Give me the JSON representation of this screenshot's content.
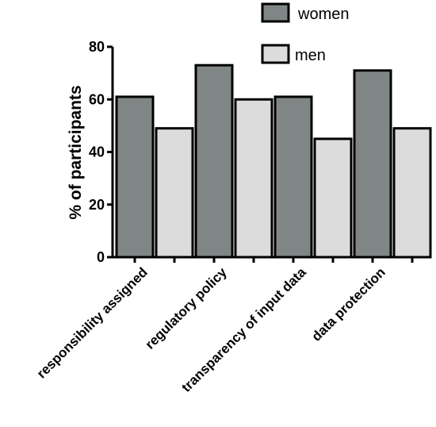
{
  "colors": {
    "women": "#7f8685",
    "men": "#dcdcdc",
    "outline": "#000000"
  },
  "chart_data": {
    "type": "bar",
    "categories": [
      "responsibility assigned",
      "regulatory policy",
      "transparency of input data",
      "data protection"
    ],
    "series": [
      {
        "name": "women",
        "values": [
          61,
          73,
          61,
          71
        ]
      },
      {
        "name": "men",
        "values": [
          49,
          60,
          45,
          49
        ]
      }
    ],
    "title": "",
    "xlabel": "",
    "ylabel": "% of participants",
    "ylim": [
      0,
      80
    ],
    "yticks": [
      "0",
      "20",
      "40",
      "60",
      "80"
    ],
    "grid": false,
    "legend": "top-right"
  }
}
